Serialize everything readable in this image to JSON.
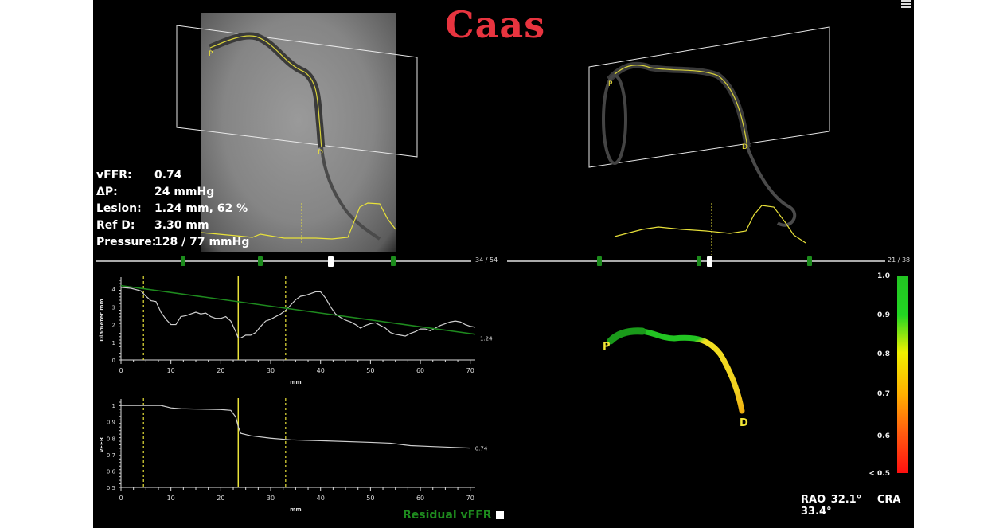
{
  "app": {
    "brand": "Caas",
    "menu_icon": "hamburger-menu-icon"
  },
  "stats": [
    {
      "label": "vFFR:",
      "value": "0.74"
    },
    {
      "label": "ΔP:",
      "value": "24 mmHg"
    },
    {
      "label": "Lesion:",
      "value": "1.24 mm, 62 %"
    },
    {
      "label": "Ref D:",
      "value": "3.30 mm"
    },
    {
      "label": "Pressure:",
      "value": "128 / 77 mmHg"
    }
  ],
  "view1": {
    "frame": "34 /  54",
    "marker_P": "P",
    "marker_D": "D"
  },
  "view2": {
    "frame": "21 /  38",
    "marker_P": "P",
    "marker_D": "D"
  },
  "model3d": {
    "proximal": "P",
    "distal": "D"
  },
  "color_scale": {
    "labels": [
      "1.0",
      "0.9",
      "0.8",
      "0.7",
      "0.6",
      "< 0.5"
    ],
    "colors": [
      "#22c422",
      "#f0f000",
      "#ff1010"
    ]
  },
  "angles": {
    "rao": "RAO 32.1°",
    "cra": "CRA 33.4°"
  },
  "residual": {
    "label": "Residual vFFR"
  },
  "chart_data": [
    {
      "type": "line",
      "title": "",
      "xlabel": "mm",
      "ylabel": "Diameter mm",
      "xlim": [
        0,
        71
      ],
      "ylim": [
        0,
        4.5
      ],
      "xticks": [
        "0",
        "10",
        "20",
        "30",
        "40",
        "50",
        "60",
        "70"
      ],
      "yticks": [
        "0",
        "1",
        "2",
        "3",
        "4"
      ],
      "series": [
        {
          "name": "diameter",
          "x": [
            0,
            2,
            4,
            5,
            6,
            7,
            8,
            9,
            10,
            11,
            12,
            13,
            14,
            15,
            16,
            17,
            18,
            19,
            20,
            21,
            22,
            23,
            23.5,
            24,
            25,
            26,
            27,
            28,
            29,
            30,
            31,
            32,
            33,
            34,
            35,
            36,
            37,
            38,
            39,
            40,
            41,
            42,
            43,
            44,
            45,
            46,
            47,
            48,
            49,
            50,
            51,
            52,
            53,
            54,
            55,
            56,
            57,
            58,
            59,
            60,
            61,
            62,
            63,
            64,
            65,
            66,
            67,
            68,
            69,
            70,
            71
          ],
          "y": [
            4.1,
            4.05,
            3.9,
            3.6,
            3.35,
            3.3,
            2.7,
            2.3,
            2.0,
            2.0,
            2.45,
            2.5,
            2.6,
            2.7,
            2.6,
            2.65,
            2.45,
            2.35,
            2.35,
            2.45,
            2.2,
            1.6,
            1.24,
            1.24,
            1.4,
            1.4,
            1.55,
            1.9,
            2.2,
            2.3,
            2.45,
            2.6,
            2.8,
            3.1,
            3.4,
            3.6,
            3.65,
            3.75,
            3.85,
            3.85,
            3.5,
            3.0,
            2.6,
            2.4,
            2.25,
            2.15,
            2.0,
            1.8,
            1.95,
            2.05,
            2.1,
            1.95,
            1.8,
            1.55,
            1.45,
            1.4,
            1.35,
            1.5,
            1.6,
            1.75,
            1.75,
            1.65,
            1.8,
            1.95,
            2.05,
            2.15,
            2.2,
            2.15,
            2.0,
            1.9,
            1.85
          ]
        },
        {
          "name": "reference",
          "x": [
            0,
            71
          ],
          "y": [
            4.2,
            1.45
          ]
        },
        {
          "name": "min-diameter-line",
          "x": [
            23.5,
            71
          ],
          "y": [
            1.24,
            1.24
          ]
        }
      ],
      "vertical_lines": [
        {
          "x": 4.5,
          "style": "dashed"
        },
        {
          "x": 23.5,
          "style": "solid"
        },
        {
          "x": 33,
          "style": "dashed"
        }
      ],
      "annotations": [
        {
          "text": "1.24",
          "x": 71,
          "y": 1.24
        }
      ]
    },
    {
      "type": "line",
      "title": "",
      "xlabel": "mm",
      "ylabel": "vFFR",
      "xlim": [
        0,
        71
      ],
      "ylim": [
        0.5,
        1.02
      ],
      "xticks": [
        "0",
        "10",
        "20",
        "30",
        "40",
        "50",
        "60",
        "70"
      ],
      "yticks": [
        "0.5",
        "0.6",
        "0.7",
        "0.8",
        "0.9",
        "1"
      ],
      "series": [
        {
          "name": "vFFR",
          "x": [
            0,
            8,
            10,
            12,
            20,
            22,
            23,
            23.5,
            24,
            26,
            30,
            34,
            40,
            50,
            54,
            58,
            62,
            66,
            70
          ],
          "y": [
            1.0,
            1.0,
            0.985,
            0.98,
            0.975,
            0.97,
            0.93,
            0.87,
            0.83,
            0.815,
            0.8,
            0.79,
            0.785,
            0.775,
            0.77,
            0.755,
            0.75,
            0.745,
            0.74
          ]
        }
      ],
      "vertical_lines": [
        {
          "x": 4.5,
          "style": "dashed"
        },
        {
          "x": 23.5,
          "style": "solid"
        },
        {
          "x": 33,
          "style": "dashed"
        }
      ],
      "annotations": [
        {
          "text": "0.74",
          "x": 70,
          "y": 0.74
        }
      ]
    }
  ]
}
